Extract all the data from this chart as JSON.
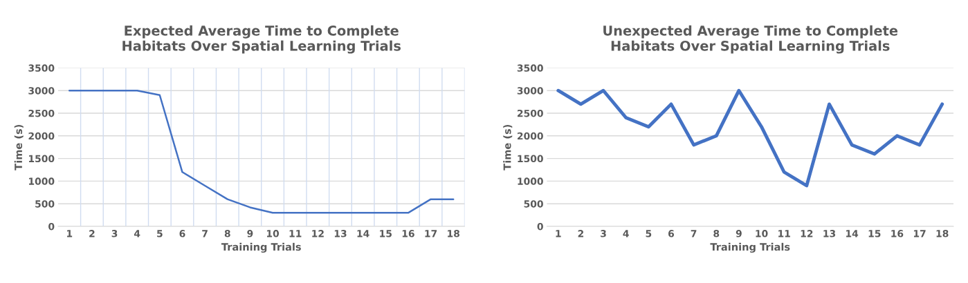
{
  "chart_data": [
    {
      "type": "line",
      "title": "Expected Average Time to Complete\nHabitats Over Spatial Learning Trials",
      "xlabel": "Training Trials",
      "ylabel": "Time (s)",
      "categories": [
        "1",
        "2",
        "3",
        "4",
        "5",
        "6",
        "7",
        "8",
        "9",
        "10",
        "11",
        "12",
        "13",
        "14",
        "15",
        "16",
        "17",
        "18"
      ],
      "series": [
        {
          "color": "#4472c4",
          "values": [
            3000,
            3000,
            3000,
            3000,
            2900,
            1200,
            900,
            600,
            420,
            300,
            300,
            300,
            300,
            300,
            300,
            300,
            600,
            600
          ]
        }
      ],
      "ylim": [
        0,
        3500
      ],
      "yticks": [
        0,
        500,
        1000,
        1500,
        2000,
        2500,
        3000,
        3500
      ],
      "grid": true,
      "marker": "none",
      "line_style": "solid"
    },
    {
      "type": "line",
      "title": "Unexpected Average Time to Complete\nHabitats Over Spatial Learning Trials",
      "xlabel": "Training Trials",
      "ylabel": "Time (s)",
      "categories": [
        "1",
        "2",
        "3",
        "4",
        "5",
        "6",
        "7",
        "8",
        "9",
        "10",
        "11",
        "12",
        "13",
        "14",
        "15",
        "16",
        "17",
        "18"
      ],
      "series": [
        {
          "color": "#4472c4",
          "values": [
            3000,
            2700,
            3000,
            2400,
            2200,
            2700,
            1800,
            2000,
            3000,
            2200,
            1200,
            900,
            2700,
            1800,
            1600,
            2000,
            1800,
            2700
          ]
        }
      ],
      "ylim": [
        0,
        3500
      ],
      "yticks": [
        0,
        500,
        1000,
        1500,
        2000,
        2500,
        3000,
        3500
      ],
      "grid": "y",
      "marker": "none",
      "line_style": "solid"
    }
  ]
}
